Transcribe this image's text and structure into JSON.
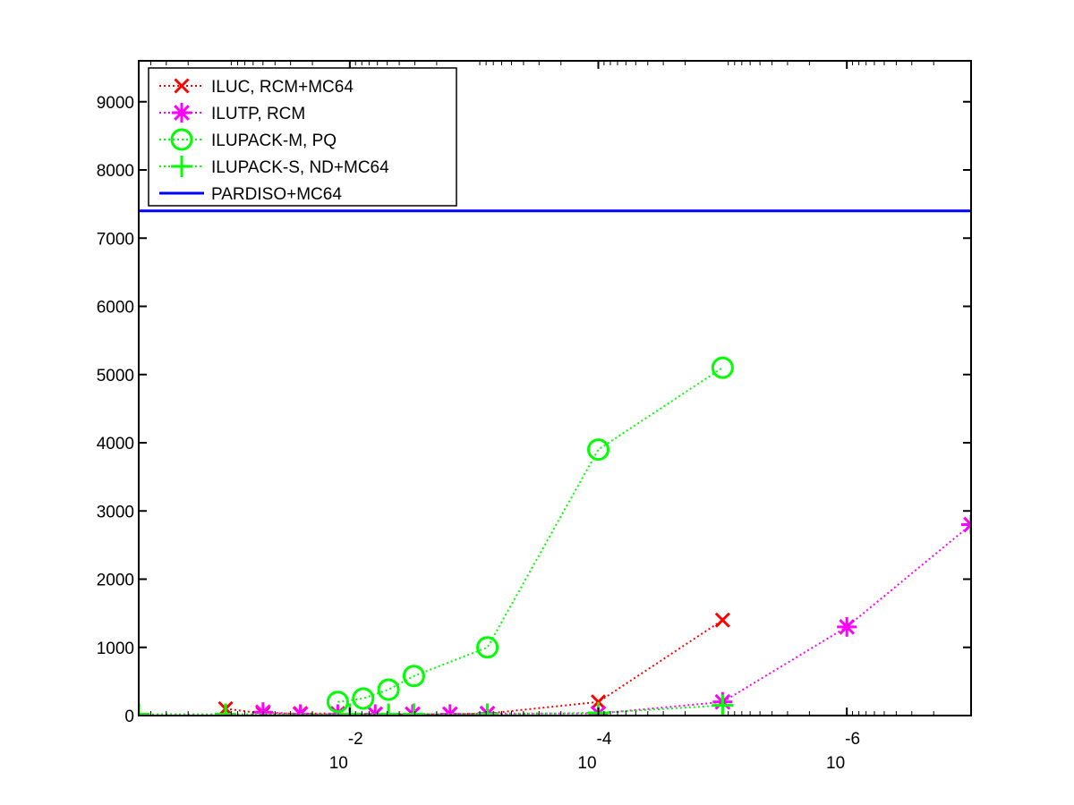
{
  "chart_data": {
    "type": "line",
    "title": "",
    "xlabel": "",
    "ylabel": "",
    "x_scale": "log",
    "x_direction": "decreasing",
    "xlim": [
      0.5,
      1e-07
    ],
    "ylim": [
      0,
      9600
    ],
    "grid": false,
    "legend_position": "top-left",
    "x_ticks": [
      {
        "value": 0.01,
        "base": "10",
        "exp": "-2"
      },
      {
        "value": 0.0001,
        "base": "10",
        "exp": "-4"
      },
      {
        "value": 1e-06,
        "base": "10",
        "exp": "-6"
      }
    ],
    "y_ticks": [
      0,
      1000,
      2000,
      3000,
      4000,
      5000,
      6000,
      7000,
      8000,
      9000
    ],
    "series": [
      {
        "name": "ILUC, RCM+MC64",
        "color": "#ff0000",
        "marker": "x",
        "line": "dotted",
        "x": [
          0.1,
          0.05,
          0.025,
          0.0125,
          0.00625,
          0.003125,
          0.0015625,
          0.00078125,
          0.0001,
          1e-05
        ],
        "y": [
          100,
          30,
          30,
          30,
          20,
          20,
          20,
          30,
          200,
          1400
        ]
      },
      {
        "name": "ILUTP, RCM",
        "color": "#ff00ff",
        "marker": "asterisk",
        "line": "dotted",
        "x": [
          0.05,
          0.025,
          0.0125,
          0.00625,
          0.003125,
          0.0015625,
          0.00078125,
          0.0001,
          1e-05,
          1e-06,
          1e-07
        ],
        "y": [
          50,
          20,
          20,
          20,
          20,
          20,
          30,
          30,
          200,
          1300,
          2800
        ]
      },
      {
        "name": "ILUPACK-M, PQ",
        "color": "#00ff00",
        "marker": "circle",
        "line": "dotted",
        "x": [
          0.0125,
          0.0078125,
          0.0048828125,
          0.0030517578125,
          0.00078125,
          0.0001,
          1e-05
        ],
        "y": [
          200,
          250,
          380,
          580,
          1000,
          3900,
          5100
        ]
      },
      {
        "name": "ILUPACK-S, ND+MC64",
        "color": "#00ff00",
        "marker": "plus",
        "line": "dotted",
        "x": [
          0.5,
          0.1,
          0.01,
          0.0048828125,
          0.0030517578125,
          0.00078125,
          0.0001,
          1e-05
        ],
        "y": [
          20,
          20,
          20,
          20,
          20,
          20,
          40,
          150
        ]
      },
      {
        "name": "PARDISO+MC64",
        "color": "#0000ff",
        "marker": "none",
        "line": "solid",
        "x": [
          0.5,
          1e-07
        ],
        "y": [
          7400,
          7400
        ]
      }
    ]
  }
}
